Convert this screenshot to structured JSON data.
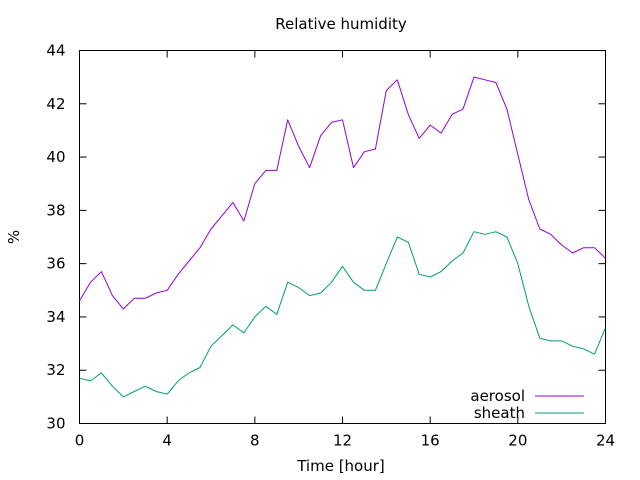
{
  "chart_data": {
    "type": "line",
    "title": "Relative humidity",
    "xlabel": "Time [hour]",
    "ylabel": "%",
    "xlim": [
      0,
      24
    ],
    "ylim": [
      30,
      44
    ],
    "xticks": [
      0,
      4,
      8,
      12,
      16,
      20,
      24
    ],
    "yticks": [
      30,
      32,
      34,
      36,
      38,
      40,
      42,
      44
    ],
    "grid": false,
    "legend_position": "bottom-right",
    "series": [
      {
        "name": "aerosol",
        "color": "#9400d3",
        "x": [
          0,
          0.5,
          1,
          1.5,
          2,
          2.5,
          3,
          3.5,
          4,
          4.5,
          5,
          5.5,
          6,
          6.5,
          7,
          7.5,
          8,
          8.5,
          9,
          9.5,
          10,
          10.5,
          11,
          11.5,
          12,
          12.5,
          13,
          13.5,
          14,
          14.5,
          15,
          15.5,
          16,
          16.5,
          17,
          17.5,
          18,
          18.5,
          19,
          19.5,
          20,
          20.5,
          21,
          21.5,
          22,
          22.5,
          23,
          23.5,
          24
        ],
        "y": [
          34.6,
          35.3,
          35.7,
          34.8,
          34.3,
          34.7,
          34.7,
          34.9,
          35.0,
          35.6,
          36.1,
          36.6,
          37.3,
          37.8,
          38.3,
          37.6,
          39.0,
          39.5,
          39.5,
          41.4,
          40.4,
          39.6,
          40.8,
          41.3,
          41.4,
          39.6,
          40.2,
          40.3,
          42.5,
          42.9,
          41.6,
          40.7,
          41.2,
          40.9,
          41.6,
          41.8,
          43.0,
          42.9,
          42.8,
          41.8,
          40.1,
          38.4,
          37.3,
          37.1,
          36.7,
          36.4,
          36.6,
          36.6,
          36.2
        ]
      },
      {
        "name": "sheath",
        "color": "#009e73",
        "x": [
          0,
          0.5,
          1,
          1.5,
          2,
          2.5,
          3,
          3.5,
          4,
          4.5,
          5,
          5.5,
          6,
          6.5,
          7,
          7.5,
          8,
          8.5,
          9,
          9.5,
          10,
          10.5,
          11,
          11.5,
          12,
          12.5,
          13,
          13.5,
          14,
          14.5,
          15,
          15.5,
          16,
          16.5,
          17,
          17.5,
          18,
          18.5,
          19,
          19.5,
          20,
          20.5,
          21,
          21.5,
          22,
          22.5,
          23,
          23.5,
          24
        ],
        "y": [
          31.7,
          31.6,
          31.9,
          31.4,
          31.0,
          31.2,
          31.4,
          31.2,
          31.1,
          31.6,
          31.9,
          32.1,
          32.9,
          33.3,
          33.7,
          33.4,
          34.0,
          34.4,
          34.1,
          35.3,
          35.1,
          34.8,
          34.9,
          35.3,
          35.9,
          35.3,
          35.0,
          35.0,
          36.0,
          37.0,
          36.8,
          35.6,
          35.5,
          35.7,
          36.1,
          36.4,
          37.2,
          37.1,
          37.2,
          37.0,
          36.0,
          34.4,
          33.2,
          33.1,
          33.1,
          32.9,
          32.8,
          32.6,
          33.6
        ]
      }
    ]
  }
}
